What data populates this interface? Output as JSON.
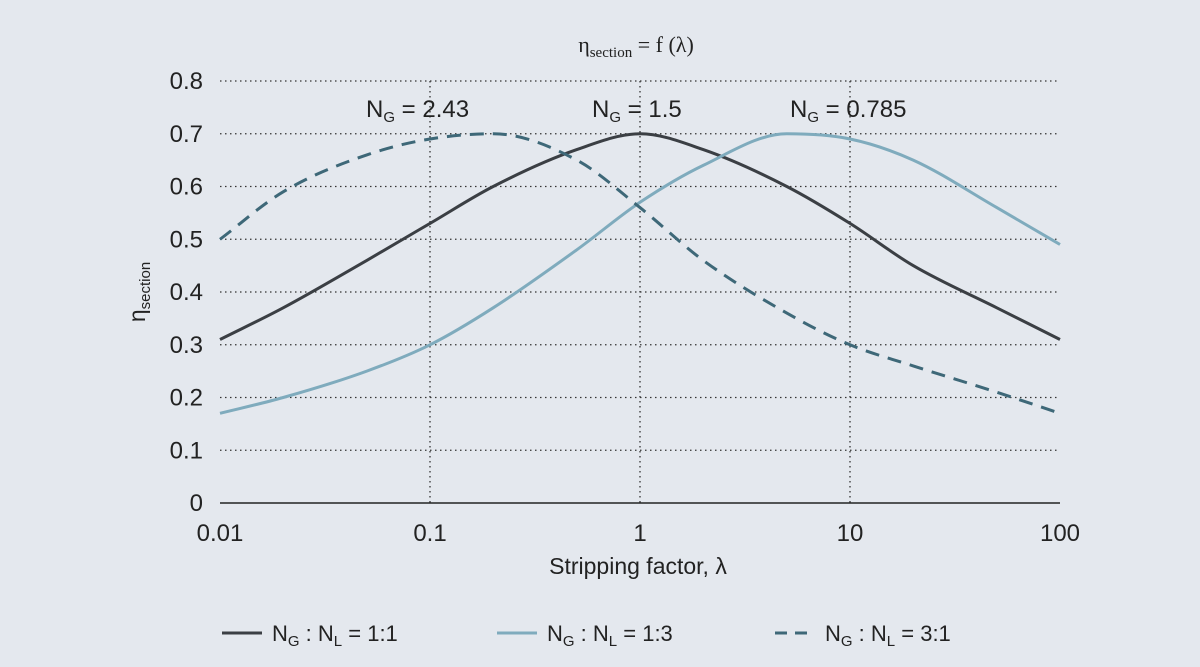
{
  "chart_data": {
    "type": "line",
    "title": {
      "main": "η",
      "sub": "section",
      "rest": " = f (λ)"
    },
    "xlabel": "Stripping factor, λ",
    "ylabel": {
      "main": "η",
      "sub": "section"
    },
    "xscale": "log",
    "xlim": [
      0.01,
      100
    ],
    "ylim": [
      0,
      0.8
    ],
    "grid": "dotted",
    "legend_position": "bottom",
    "x_ticks": [
      0.01,
      0.1,
      1,
      10,
      100
    ],
    "x_tick_labels": [
      "0.01",
      "0.1",
      "1",
      "10",
      "100"
    ],
    "y_ticks": [
      0,
      0.1,
      0.2,
      0.3,
      0.4,
      0.5,
      0.6,
      0.7,
      0.8
    ],
    "y_tick_labels": [
      "0",
      "0.1",
      "0.2",
      "0.3",
      "0.4",
      "0.5",
      "0.6",
      "0.7",
      "0.8"
    ],
    "annotations": [
      {
        "pre": "N",
        "sub": "G",
        "post": " = 2.43",
        "x": 0.1
      },
      {
        "pre": "N",
        "sub": "G",
        "post": " = 1.5",
        "x": 1
      },
      {
        "pre": "N",
        "sub": "G",
        "post": " = 0.785",
        "x": 10
      }
    ],
    "series": [
      {
        "legend": {
          "a": "N",
          "a_sub": "G",
          "mid": " : N",
          "b_sub": "L",
          "post": " = 1:1"
        },
        "color": "#3b3f44",
        "dash": "solid",
        "x": [
          0.01,
          0.02,
          0.05,
          0.1,
          0.2,
          0.5,
          1,
          2,
          5,
          10,
          20,
          50,
          100
        ],
        "y": [
          0.31,
          0.37,
          0.46,
          0.53,
          0.6,
          0.67,
          0.7,
          0.67,
          0.6,
          0.53,
          0.45,
          0.37,
          0.31
        ]
      },
      {
        "legend": {
          "a": "N",
          "a_sub": "G",
          "mid": " : N",
          "b_sub": "L",
          "post": " = 1:3"
        },
        "color": "#7fabbd",
        "dash": "solid",
        "x": [
          0.01,
          0.02,
          0.05,
          0.1,
          0.2,
          0.5,
          1,
          2,
          5,
          10,
          20,
          50,
          100
        ],
        "y": [
          0.17,
          0.2,
          0.25,
          0.3,
          0.37,
          0.48,
          0.57,
          0.64,
          0.7,
          0.69,
          0.65,
          0.56,
          0.49
        ]
      },
      {
        "legend": {
          "a": "N",
          "a_sub": "G",
          "mid": " : N",
          "b_sub": "L",
          "post": " = 3:1"
        },
        "color": "#3e6878",
        "dash": "dashed",
        "x": [
          0.01,
          0.02,
          0.05,
          0.1,
          0.2,
          0.5,
          1,
          2,
          5,
          10,
          20,
          50,
          100
        ],
        "y": [
          0.5,
          0.59,
          0.66,
          0.69,
          0.7,
          0.65,
          0.56,
          0.46,
          0.36,
          0.3,
          0.26,
          0.21,
          0.17
        ]
      }
    ]
  }
}
